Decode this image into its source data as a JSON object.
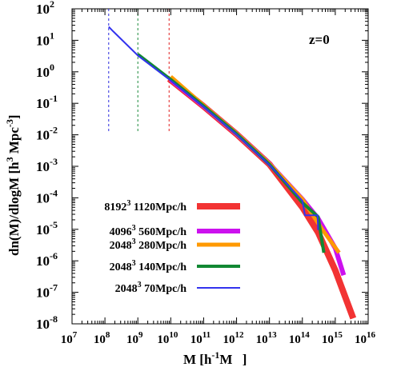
{
  "chart_data": {
    "type": "line",
    "title": "",
    "annotation": "z=0",
    "xlabel": "M [h-1M ]",
    "ylabel": "dn(M)/dlogM [h3 Mpc-3]",
    "x_scale": "log",
    "y_scale": "log",
    "xlim": [
      10000000.0,
      1e+16
    ],
    "ylim": [
      1e-08,
      100.0
    ],
    "grid": false,
    "legend_position": "bottom-left",
    "x_ticks": [
      {
        "base": "10",
        "exp": "7"
      },
      {
        "base": "10",
        "exp": "8"
      },
      {
        "base": "10",
        "exp": "9"
      },
      {
        "base": "10",
        "exp": "10"
      },
      {
        "base": "10",
        "exp": "11"
      },
      {
        "base": "10",
        "exp": "12"
      },
      {
        "base": "10",
        "exp": "13"
      },
      {
        "base": "10",
        "exp": "14"
      },
      {
        "base": "10",
        "exp": "15"
      },
      {
        "base": "10",
        "exp": "16"
      }
    ],
    "y_ticks": [
      {
        "base": "10",
        "exp": "-8"
      },
      {
        "base": "10",
        "exp": "-7"
      },
      {
        "base": "10",
        "exp": "-6"
      },
      {
        "base": "10",
        "exp": "-5"
      },
      {
        "base": "10",
        "exp": "-4"
      },
      {
        "base": "10",
        "exp": "-3"
      },
      {
        "base": "10",
        "exp": "-2"
      },
      {
        "base": "10",
        "exp": "-1"
      },
      {
        "base": "10",
        "exp": "0"
      },
      {
        "base": "10",
        "exp": "1"
      },
      {
        "base": "10",
        "exp": "2"
      }
    ],
    "vlines": [
      {
        "x": 130000000.0,
        "color": "#2a2adf"
      },
      {
        "x": 1000000000.0,
        "color": "#1a8a3a"
      },
      {
        "x": 8900000000.0,
        "color": "#e02020"
      }
    ],
    "series": [
      {
        "name_res": "8192",
        "name_pow": "3",
        "name_box": " 1120Mpc/h",
        "color": "#f23333",
        "legend_width": 8,
        "points": [
          [
            8900000000.0,
            0.6
          ],
          [
            100000000000.0,
            0.08
          ],
          [
            1000000000000.0,
            0.0105
          ],
          [
            10000000000000.0,
            0.00115
          ],
          [
            100000000000000.0,
            5e-05
          ],
          [
            300000000000000.0,
            8e-06
          ],
          [
            1000000000000000.0,
            5e-07
          ],
          [
            3500000000000000.0,
            1.5e-08
          ]
        ]
      },
      {
        "name_res": "4096",
        "name_pow": "3",
        "name_box": " 560Mpc/h",
        "color": "#cc11ee",
        "legend_width": 6,
        "points": [
          [
            10000000000.0,
            0.56
          ],
          [
            100000000000.0,
            0.082
          ],
          [
            1000000000000.0,
            0.0108
          ],
          [
            10000000000000.0,
            0.0012
          ],
          [
            100000000000000.0,
            9e-05
          ],
          [
            300000000000000.0,
            2.2e-05
          ],
          [
            1000000000000000.0,
            2.5e-06
          ],
          [
            1800000000000000.0,
            3.5e-07
          ]
        ]
      },
      {
        "name_res": "2048",
        "name_pow": "3",
        "name_box": " 280Mpc/h",
        "color": "#ff9900",
        "legend_width": 5,
        "points": [
          [
            10000000000.0,
            0.7
          ],
          [
            100000000000.0,
            0.085
          ],
          [
            1000000000000.0,
            0.011
          ],
          [
            10000000000000.0,
            0.0012
          ],
          [
            100000000000000.0,
            9e-05
          ],
          [
            400000000000000.0,
            1e-05
          ],
          [
            1300000000000000.0,
            1.8e-06
          ]
        ]
      },
      {
        "name_res": "2048",
        "name_pow": "3",
        "name_box": " 140Mpc/h",
        "color": "#118833",
        "legend_width": 4,
        "points": [
          [
            1000000000.0,
            3.6
          ],
          [
            10000000000.0,
            0.57
          ],
          [
            100000000000.0,
            0.082
          ],
          [
            1000000000000.0,
            0.0108
          ],
          [
            10000000000000.0,
            0.00115
          ],
          [
            100000000000000.0,
            7e-05
          ],
          [
            300000000000000.0,
            2.5e-05
          ],
          [
            450000000000000.0,
            1.8e-06
          ]
        ]
      },
      {
        "name_res": "2048",
        "name_pow": "3",
        "name_box": " 70Mpc/h",
        "color": "#3333ee",
        "legend_width": 2,
        "points": [
          [
            130000000.0,
            27
          ],
          [
            180000000.0,
            19
          ],
          [
            1000000000.0,
            3.3
          ],
          [
            10000000000.0,
            0.53
          ],
          [
            100000000000.0,
            0.078
          ],
          [
            1000000000000.0,
            0.0103
          ],
          [
            10000000000000.0,
            0.00112
          ],
          [
            100000000000000.0,
            8e-05
          ],
          [
            120000000000000.0,
            2.8e-05
          ],
          [
            220000000000000.0,
            2.8e-05
          ],
          [
            290000000000000.0,
            2.8e-05
          ],
          [
            300000000000000.0,
            9.5e-06
          ]
        ]
      }
    ]
  }
}
